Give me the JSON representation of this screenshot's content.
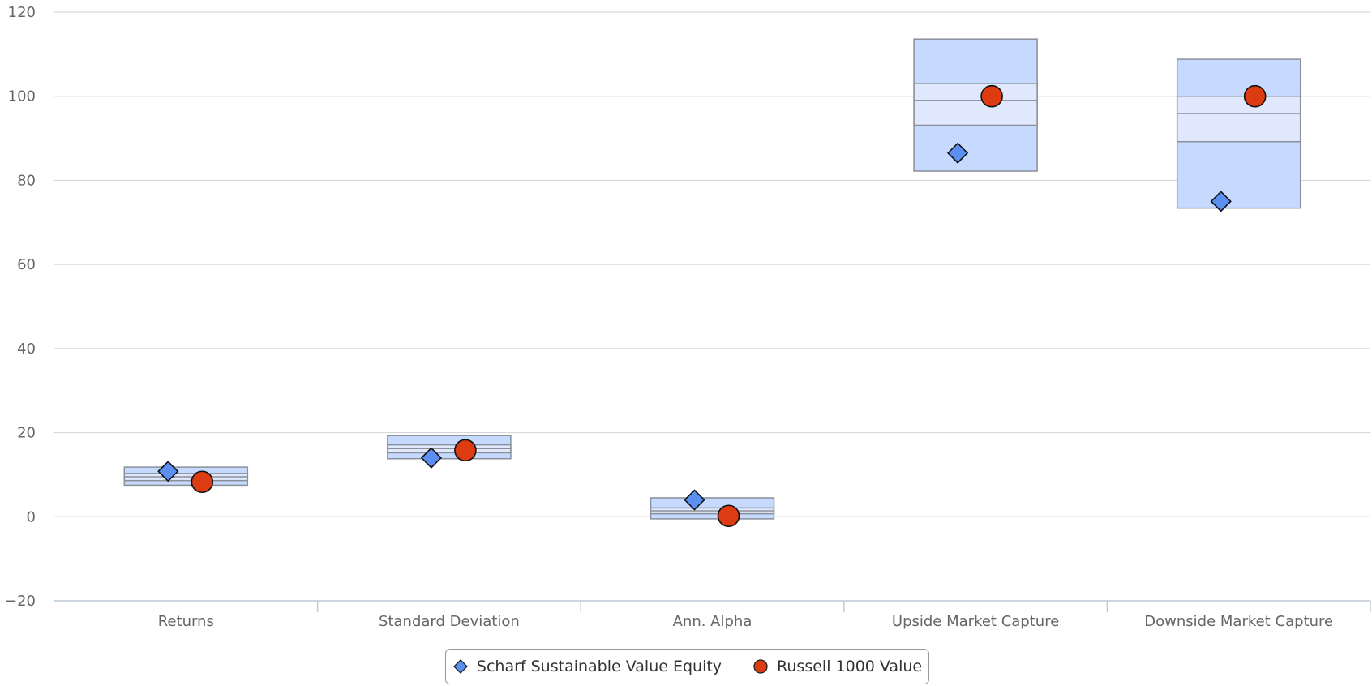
{
  "chart_data": {
    "type": "boxplot",
    "title": "",
    "xlabel": "",
    "ylabel": "",
    "ylim": [
      -20,
      120
    ],
    "yticks": [
      -20,
      0,
      20,
      40,
      60,
      80,
      100,
      120
    ],
    "grid": true,
    "legend_position": "bottom-center",
    "categories": [
      "Returns",
      "Standard Deviation",
      "Ann. Alpha",
      "Upside Market Capture",
      "Downside Market Capture"
    ],
    "ranges": [
      {
        "category": "Returns",
        "min": 7.5,
        "q1": 8.6,
        "median": 9.5,
        "q3": 10.3,
        "max": 11.8
      },
      {
        "category": "Standard Deviation",
        "min": 13.8,
        "q1": 15.2,
        "median": 16.2,
        "q3": 17.1,
        "max": 19.3
      },
      {
        "category": "Ann. Alpha",
        "min": -0.5,
        "q1": 0.7,
        "median": 1.4,
        "q3": 2.1,
        "max": 4.5
      },
      {
        "category": "Upside Market Capture",
        "min": 82.2,
        "q1": 93.1,
        "median": 99.0,
        "q3": 103.0,
        "max": 113.6
      },
      {
        "category": "Downside Market Capture",
        "min": 73.4,
        "q1": 89.2,
        "median": 95.9,
        "q3": 100.0,
        "max": 108.8
      }
    ],
    "range_colors": {
      "outer": "#c6d9ff",
      "inner": "#dfe8fc",
      "stroke": "#8a8f99"
    },
    "series": [
      {
        "name": "Scharf Sustainable Value Equity",
        "marker": "diamond",
        "color": "#5b8ff0",
        "values": [
          10.8,
          14.0,
          4.0,
          86.5,
          75.0
        ]
      },
      {
        "name": "Russell 1000 Value",
        "marker": "circle",
        "color": "#dd3b11",
        "values": [
          8.3,
          15.8,
          0.2,
          100.0,
          100.0
        ]
      }
    ]
  },
  "legend": {
    "items": [
      {
        "label": "Scharf Sustainable Value Equity",
        "icon": "diamond-icon"
      },
      {
        "label": "Russell 1000 Value",
        "icon": "circle-icon"
      }
    ]
  }
}
